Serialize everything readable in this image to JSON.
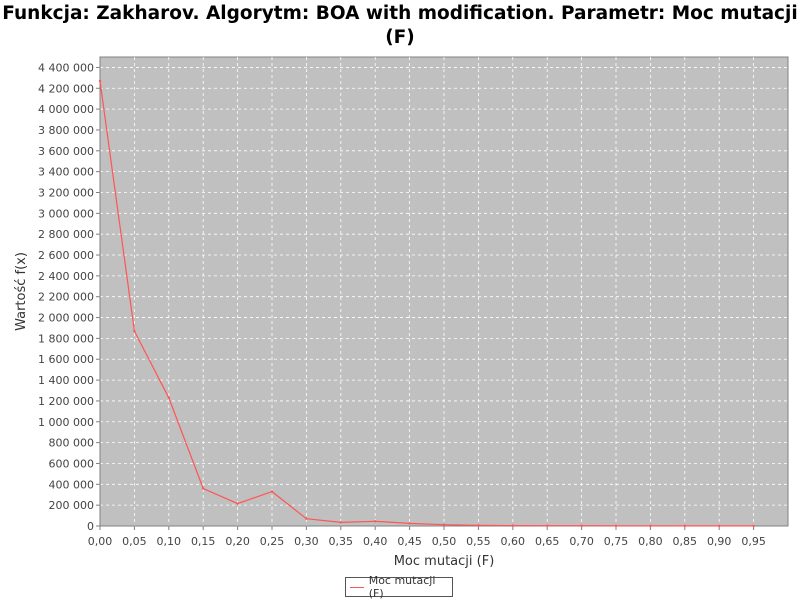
{
  "chart_data": {
    "type": "line",
    "title": "Funkcja: Zakharov. Algorytm: BOA with modification. Parametr: Moc mutacji (F)",
    "xlabel": "Moc mutacji (F)",
    "ylabel": "Wartość f(x)",
    "xlim": [
      0.0,
      1.0
    ],
    "ylim": [
      0,
      4500000
    ],
    "xticks": [
      "0,00",
      "0,05",
      "0,10",
      "0,15",
      "0,20",
      "0,25",
      "0,30",
      "0,35",
      "0,40",
      "0,45",
      "0,50",
      "0,55",
      "0,60",
      "0,65",
      "0,70",
      "0,75",
      "0,80",
      "0,85",
      "0,90",
      "0,95"
    ],
    "yticks": [
      "0",
      "200 000",
      "400 000",
      "600 000",
      "800 000",
      "1 000 000",
      "1 200 000",
      "1 400 000",
      "1 600 000",
      "1 800 000",
      "2 000 000",
      "2 200 000",
      "2 400 000",
      "2 600 000",
      "2 800 000",
      "3 000 000",
      "3 200 000",
      "3 400 000",
      "3 600 000",
      "3 800 000",
      "4 000 000",
      "4 200 000",
      "4 400 000"
    ],
    "grid": true,
    "legend_position": "bottom-center",
    "series": [
      {
        "name": "Moc mutacji (F)",
        "color": "#ff5555",
        "x": [
          0.0,
          0.05,
          0.1,
          0.15,
          0.2,
          0.25,
          0.3,
          0.35,
          0.4,
          0.45,
          0.5,
          0.55,
          0.6,
          0.65,
          0.7,
          0.75,
          0.8,
          0.85,
          0.9,
          0.95
        ],
        "y": [
          4270000,
          1870000,
          1230000,
          360000,
          215000,
          330000,
          70000,
          35000,
          45000,
          25000,
          12000,
          6000,
          4000,
          3000,
          2500,
          2000,
          1500,
          1200,
          1000,
          900
        ]
      }
    ]
  },
  "colors": {
    "plot_background": "#c0c0c0",
    "gridline": "#ffffff",
    "series": "#ff5555"
  }
}
